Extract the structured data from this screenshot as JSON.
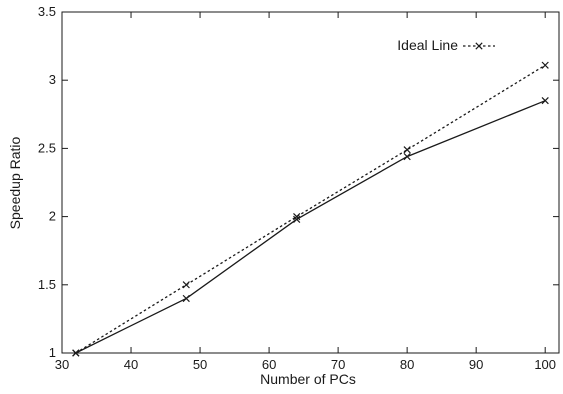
{
  "chart_data": {
    "type": "line",
    "title": "",
    "xlabel": "Number of PCs",
    "ylabel": "Speedup Ratio",
    "xlim": [
      30,
      102
    ],
    "ylim": [
      1,
      3.5
    ],
    "xticks": [
      "30",
      "40",
      "50",
      "60",
      "70",
      "80",
      "90",
      "100"
    ],
    "yticks": [
      "1",
      "1.5",
      "2",
      "2.5",
      "3",
      "3.5"
    ],
    "grid": false,
    "legend_position": "top-right",
    "series": [
      {
        "name": "",
        "line_style": "solid",
        "marker": "x",
        "color": "#1a1a1a",
        "x": [
          32,
          48,
          64,
          80,
          100
        ],
        "y": [
          1.0,
          1.4,
          1.98,
          2.44,
          2.85
        ]
      },
      {
        "name": "Ideal Line",
        "line_style": "dotted",
        "marker": "x",
        "color": "#1a1a1a",
        "x": [
          32,
          48,
          64,
          80,
          100
        ],
        "y": [
          1.0,
          1.5,
          2.0,
          2.49,
          3.11
        ]
      }
    ]
  }
}
